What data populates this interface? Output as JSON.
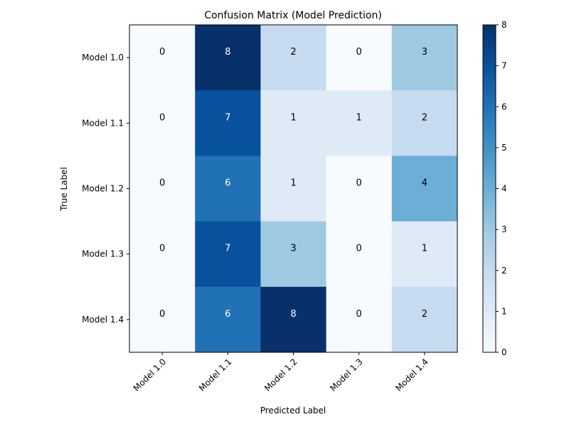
{
  "chart_data": {
    "type": "heatmap",
    "title": "Confusion Matrix (Model Prediction)",
    "xlabel": "Predicted Label",
    "ylabel": "True Label",
    "x_categories": [
      "Model 1.0",
      "Model 1.1",
      "Model 1.2",
      "Model 1.3",
      "Model 1.4"
    ],
    "y_categories": [
      "Model 1.0",
      "Model 1.1",
      "Model 1.2",
      "Model 1.3",
      "Model 1.4"
    ],
    "values": [
      [
        0,
        8,
        2,
        0,
        3
      ],
      [
        0,
        7,
        1,
        1,
        2
      ],
      [
        0,
        6,
        1,
        0,
        4
      ],
      [
        0,
        7,
        3,
        0,
        1
      ],
      [
        0,
        6,
        8,
        0,
        2
      ]
    ],
    "colorscale": "Blues",
    "colorbar": {
      "range": [
        0,
        8
      ],
      "ticks": [
        "0",
        "1",
        "2",
        "3",
        "4",
        "5",
        "6",
        "7",
        "8"
      ]
    },
    "colors": {
      "text_dark": "#000000",
      "text_light": "#ffffff"
    }
  }
}
